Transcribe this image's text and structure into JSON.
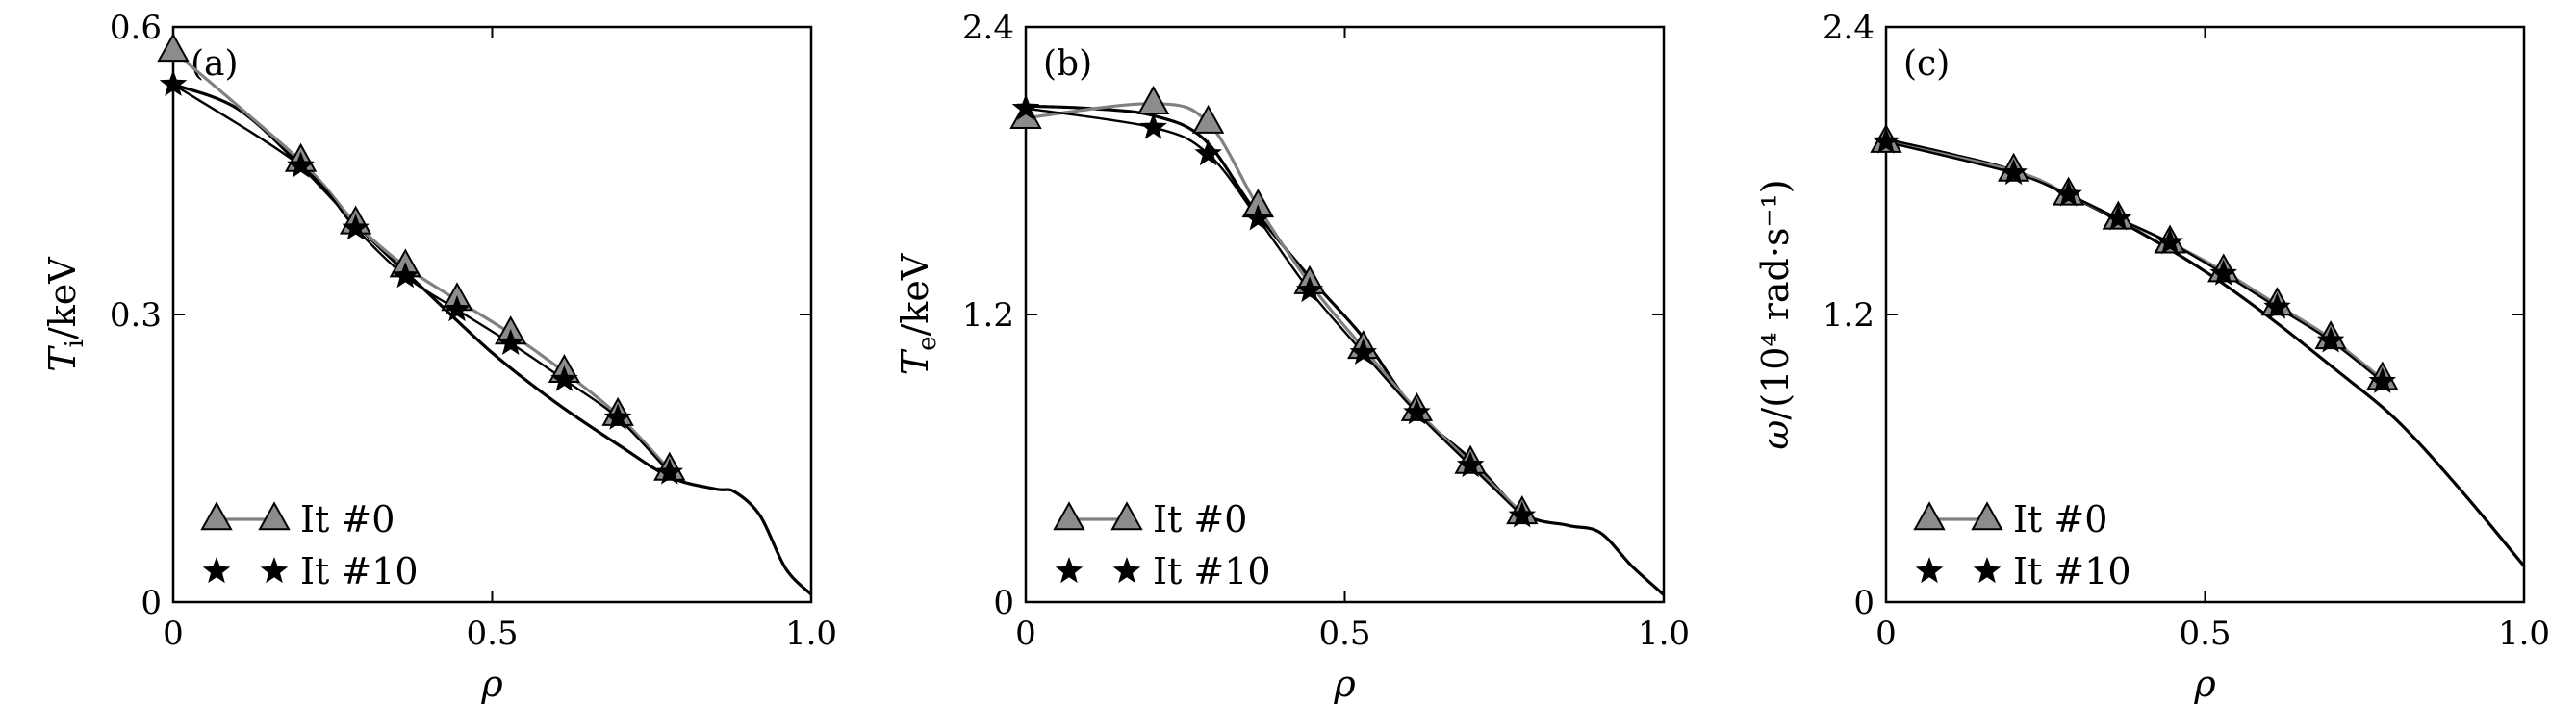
{
  "chart_data": [
    {
      "type": "line",
      "panel_label": "(a)",
      "xlabel": "ρ",
      "ylabel": "T_i/keV",
      "ylabel_main": "T",
      "ylabel_sub": "i",
      "ylabel_tail": "/keV",
      "xlim": [
        0,
        1.0
      ],
      "ylim": [
        0,
        0.6
      ],
      "xticks": [
        0,
        0.5,
        1.0
      ],
      "xtick_labels": [
        "0",
        "0.5",
        "1.0"
      ],
      "yticks": [
        0,
        0.3,
        0.6
      ],
      "ytick_labels": [
        "0",
        "0.3",
        "0.6"
      ],
      "legend_position": "bottom-left",
      "profile": {
        "x": [
          0,
          0.1,
          0.2,
          0.3,
          0.4,
          0.5,
          0.6,
          0.7,
          0.78,
          0.85,
          0.88,
          0.92,
          0.96,
          1.0
        ],
        "y": [
          0.54,
          0.515,
          0.455,
          0.385,
          0.322,
          0.26,
          0.208,
          0.163,
          0.13,
          0.118,
          0.115,
          0.09,
          0.035,
          0.008
        ]
      },
      "series": [
        {
          "name": "It #0",
          "marker": "triangle",
          "x": [
            0,
            0.2,
            0.286,
            0.364,
            0.445,
            0.529,
            0.613,
            0.697,
            0.778
          ],
          "y": [
            0.575,
            0.46,
            0.395,
            0.35,
            0.315,
            0.28,
            0.24,
            0.195,
            0.138
          ]
        },
        {
          "name": "It #10",
          "marker": "star",
          "x": [
            0,
            0.2,
            0.286,
            0.364,
            0.445,
            0.529,
            0.613,
            0.697,
            0.778
          ],
          "y": [
            0.54,
            0.455,
            0.39,
            0.34,
            0.305,
            0.27,
            0.232,
            0.192,
            0.135
          ]
        }
      ]
    },
    {
      "type": "line",
      "panel_label": "(b)",
      "xlabel": "ρ",
      "ylabel": "T_e/keV",
      "ylabel_main": "T",
      "ylabel_sub": "e",
      "ylabel_tail": "/keV",
      "xlim": [
        0,
        1.0
      ],
      "ylim": [
        0,
        2.4
      ],
      "xticks": [
        0,
        0.5,
        1.0
      ],
      "xtick_labels": [
        "0",
        "0.5",
        "1.0"
      ],
      "yticks": [
        0,
        1.2,
        2.4
      ],
      "ytick_labels": [
        "0",
        "1.2",
        "2.4"
      ],
      "legend_position": "bottom-left",
      "profile": {
        "x": [
          0,
          0.1,
          0.2,
          0.28,
          0.36,
          0.45,
          0.53,
          0.61,
          0.7,
          0.78,
          0.85,
          0.9,
          0.95,
          1.0
        ],
        "y": [
          2.07,
          2.06,
          2.03,
          1.93,
          1.63,
          1.34,
          1.1,
          0.8,
          0.59,
          0.37,
          0.32,
          0.29,
          0.15,
          0.03
        ]
      },
      "series": [
        {
          "name": "It #0",
          "marker": "triangle",
          "x": [
            0,
            0.2,
            0.286,
            0.364,
            0.445,
            0.529,
            0.613,
            0.697,
            0.778
          ],
          "y": [
            2.02,
            2.08,
            2.0,
            1.65,
            1.33,
            1.06,
            0.8,
            0.58,
            0.37
          ]
        },
        {
          "name": "It #10",
          "marker": "star",
          "x": [
            0,
            0.2,
            0.286,
            0.364,
            0.445,
            0.529,
            0.613,
            0.697,
            0.778
          ],
          "y": [
            2.06,
            1.98,
            1.87,
            1.6,
            1.3,
            1.04,
            0.79,
            0.57,
            0.36
          ]
        }
      ]
    },
    {
      "type": "line",
      "panel_label": "(c)",
      "xlabel": "ρ",
      "ylabel": "ω/(10⁴ rad·s⁻¹)",
      "ylabel_main": "ω",
      "ylabel_sub": "",
      "ylabel_tail": "/(10⁴ rad·s⁻¹)",
      "xlim": [
        0,
        1.0
      ],
      "ylim": [
        0,
        2.4
      ],
      "xticks": [
        0,
        0.5,
        1.0
      ],
      "xtick_labels": [
        "0",
        "0.5",
        "1.0"
      ],
      "yticks": [
        0,
        1.2,
        2.4
      ],
      "ytick_labels": [
        "0",
        "1.2",
        "2.4"
      ],
      "legend_position": "bottom-left",
      "profile": {
        "x": [
          0,
          0.1,
          0.2,
          0.3,
          0.4,
          0.5,
          0.6,
          0.7,
          0.8,
          0.9,
          1.0
        ],
        "y": [
          1.93,
          1.87,
          1.8,
          1.68,
          1.54,
          1.38,
          1.19,
          0.98,
          0.76,
          0.47,
          0.15
        ]
      },
      "series": [
        {
          "name": "It #0",
          "marker": "triangle",
          "x": [
            0,
            0.2,
            0.286,
            0.364,
            0.445,
            0.529,
            0.613,
            0.697,
            0.778
          ],
          "y": [
            1.92,
            1.8,
            1.7,
            1.6,
            1.5,
            1.38,
            1.24,
            1.1,
            0.93
          ]
        },
        {
          "name": "It #10",
          "marker": "star",
          "x": [
            0,
            0.2,
            0.286,
            0.364,
            0.445,
            0.529,
            0.613,
            0.697,
            0.778
          ],
          "y": [
            1.92,
            1.79,
            1.7,
            1.6,
            1.5,
            1.37,
            1.23,
            1.09,
            0.92
          ]
        }
      ]
    }
  ],
  "style": {
    "profile_color": "#000000",
    "it0_line": "#808080",
    "it0_fill": "#8c8c8c",
    "it10_color": "#000000"
  }
}
